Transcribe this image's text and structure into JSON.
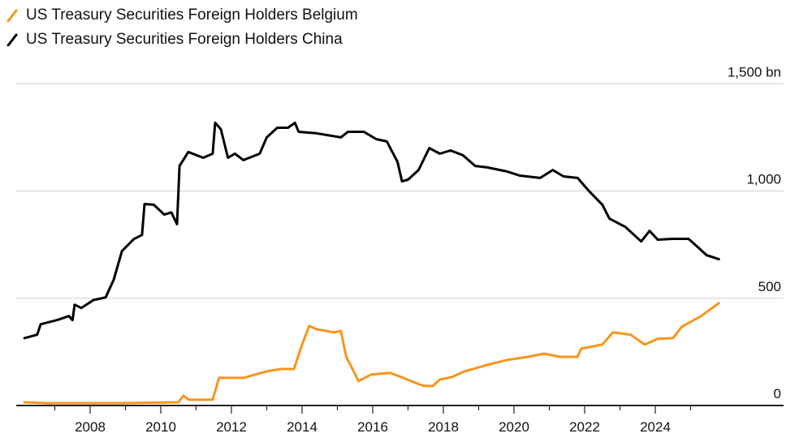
{
  "chart_data": {
    "type": "line",
    "title": "",
    "xlabel": "",
    "ylabel": "",
    "y_unit_label": "1,500 bn",
    "ylim": [
      0,
      1500
    ],
    "xlim": [
      2006,
      2026
    ],
    "grid": true,
    "legend_position": "top-left",
    "x_ticks": [
      "2008",
      "2010",
      "2012",
      "2014",
      "2016",
      "2018",
      "2020",
      "2022",
      "2024"
    ],
    "y_ticks": [
      {
        "value": 0,
        "label": "0"
      },
      {
        "value": 500,
        "label": "500"
      },
      {
        "value": 1000,
        "label": "1,000"
      },
      {
        "value": 1500,
        "label": "1,500 bn"
      }
    ],
    "series": [
      {
        "name": "US Treasury Securities Foreign Holders Belgium",
        "color": "#f7951d",
        "x": [
          2006.14,
          2006.8,
          2008.9,
          2010.5,
          2010.64,
          2010.8,
          2011.47,
          2011.65,
          2012.34,
          2013.0,
          2013.4,
          2013.77,
          2014.0,
          2014.2,
          2014.4,
          2014.9,
          2015.1,
          2015.25,
          2015.6,
          2015.95,
          2016.5,
          2016.8,
          2017.2,
          2017.45,
          2017.7,
          2017.9,
          2018.25,
          2018.6,
          2019.24,
          2019.8,
          2020.4,
          2020.85,
          2021.3,
          2021.8,
          2021.9,
          2022.5,
          2022.8,
          2023.3,
          2023.7,
          2024.07,
          2024.5,
          2024.75,
          2025.3,
          2025.8
        ],
        "values": [
          15,
          11,
          11,
          15,
          45,
          27,
          27,
          129,
          129,
          159,
          170,
          170,
          284,
          371,
          356,
          341,
          348,
          227,
          114,
          144,
          152,
          133,
          106,
          91,
          91,
          121,
          133,
          159,
          189,
          212,
          227,
          242,
          227,
          227,
          265,
          284,
          341,
          330,
          284,
          311,
          314,
          367,
          417,
          477
        ]
      },
      {
        "name": "US Treasury Securities Foreign Holders China",
        "color": "#000000",
        "x": [
          2006.14,
          2006.5,
          2006.6,
          2007.06,
          2007.4,
          2007.5,
          2007.56,
          2007.75,
          2008.1,
          2008.44,
          2008.67,
          2008.9,
          2009.24,
          2009.47,
          2009.54,
          2009.8,
          2010.1,
          2010.3,
          2010.46,
          2010.53,
          2010.78,
          2011.2,
          2011.47,
          2011.54,
          2011.7,
          2011.9,
          2012.1,
          2012.34,
          2012.8,
          2013.0,
          2013.3,
          2013.6,
          2013.8,
          2013.9,
          2014.4,
          2015.1,
          2015.3,
          2015.75,
          2016.1,
          2016.4,
          2016.7,
          2016.83,
          2017.0,
          2017.3,
          2017.6,
          2017.9,
          2018.2,
          2018.55,
          2018.9,
          2019.24,
          2019.8,
          2020.16,
          2020.74,
          2021.1,
          2021.4,
          2021.8,
          2022.1,
          2022.5,
          2022.7,
          2023.15,
          2023.6,
          2023.84,
          2024.07,
          2024.5,
          2024.94,
          2025.2,
          2025.45,
          2025.8
        ],
        "values": [
          314,
          330,
          379,
          398,
          417,
          398,
          470,
          455,
          492,
          504,
          587,
          720,
          776,
          795,
          939,
          936,
          890,
          900,
          845,
          1117,
          1182,
          1155,
          1174,
          1318,
          1288,
          1155,
          1174,
          1144,
          1174,
          1250,
          1295,
          1295,
          1318,
          1276,
          1269,
          1250,
          1276,
          1276,
          1242,
          1231,
          1136,
          1045,
          1053,
          1098,
          1200,
          1174,
          1189,
          1167,
          1117,
          1110,
          1091,
          1072,
          1061,
          1098,
          1068,
          1061,
          1004,
          936,
          871,
          833,
          765,
          814,
          773,
          777,
          777,
          739,
          701,
          682
        ]
      }
    ]
  }
}
